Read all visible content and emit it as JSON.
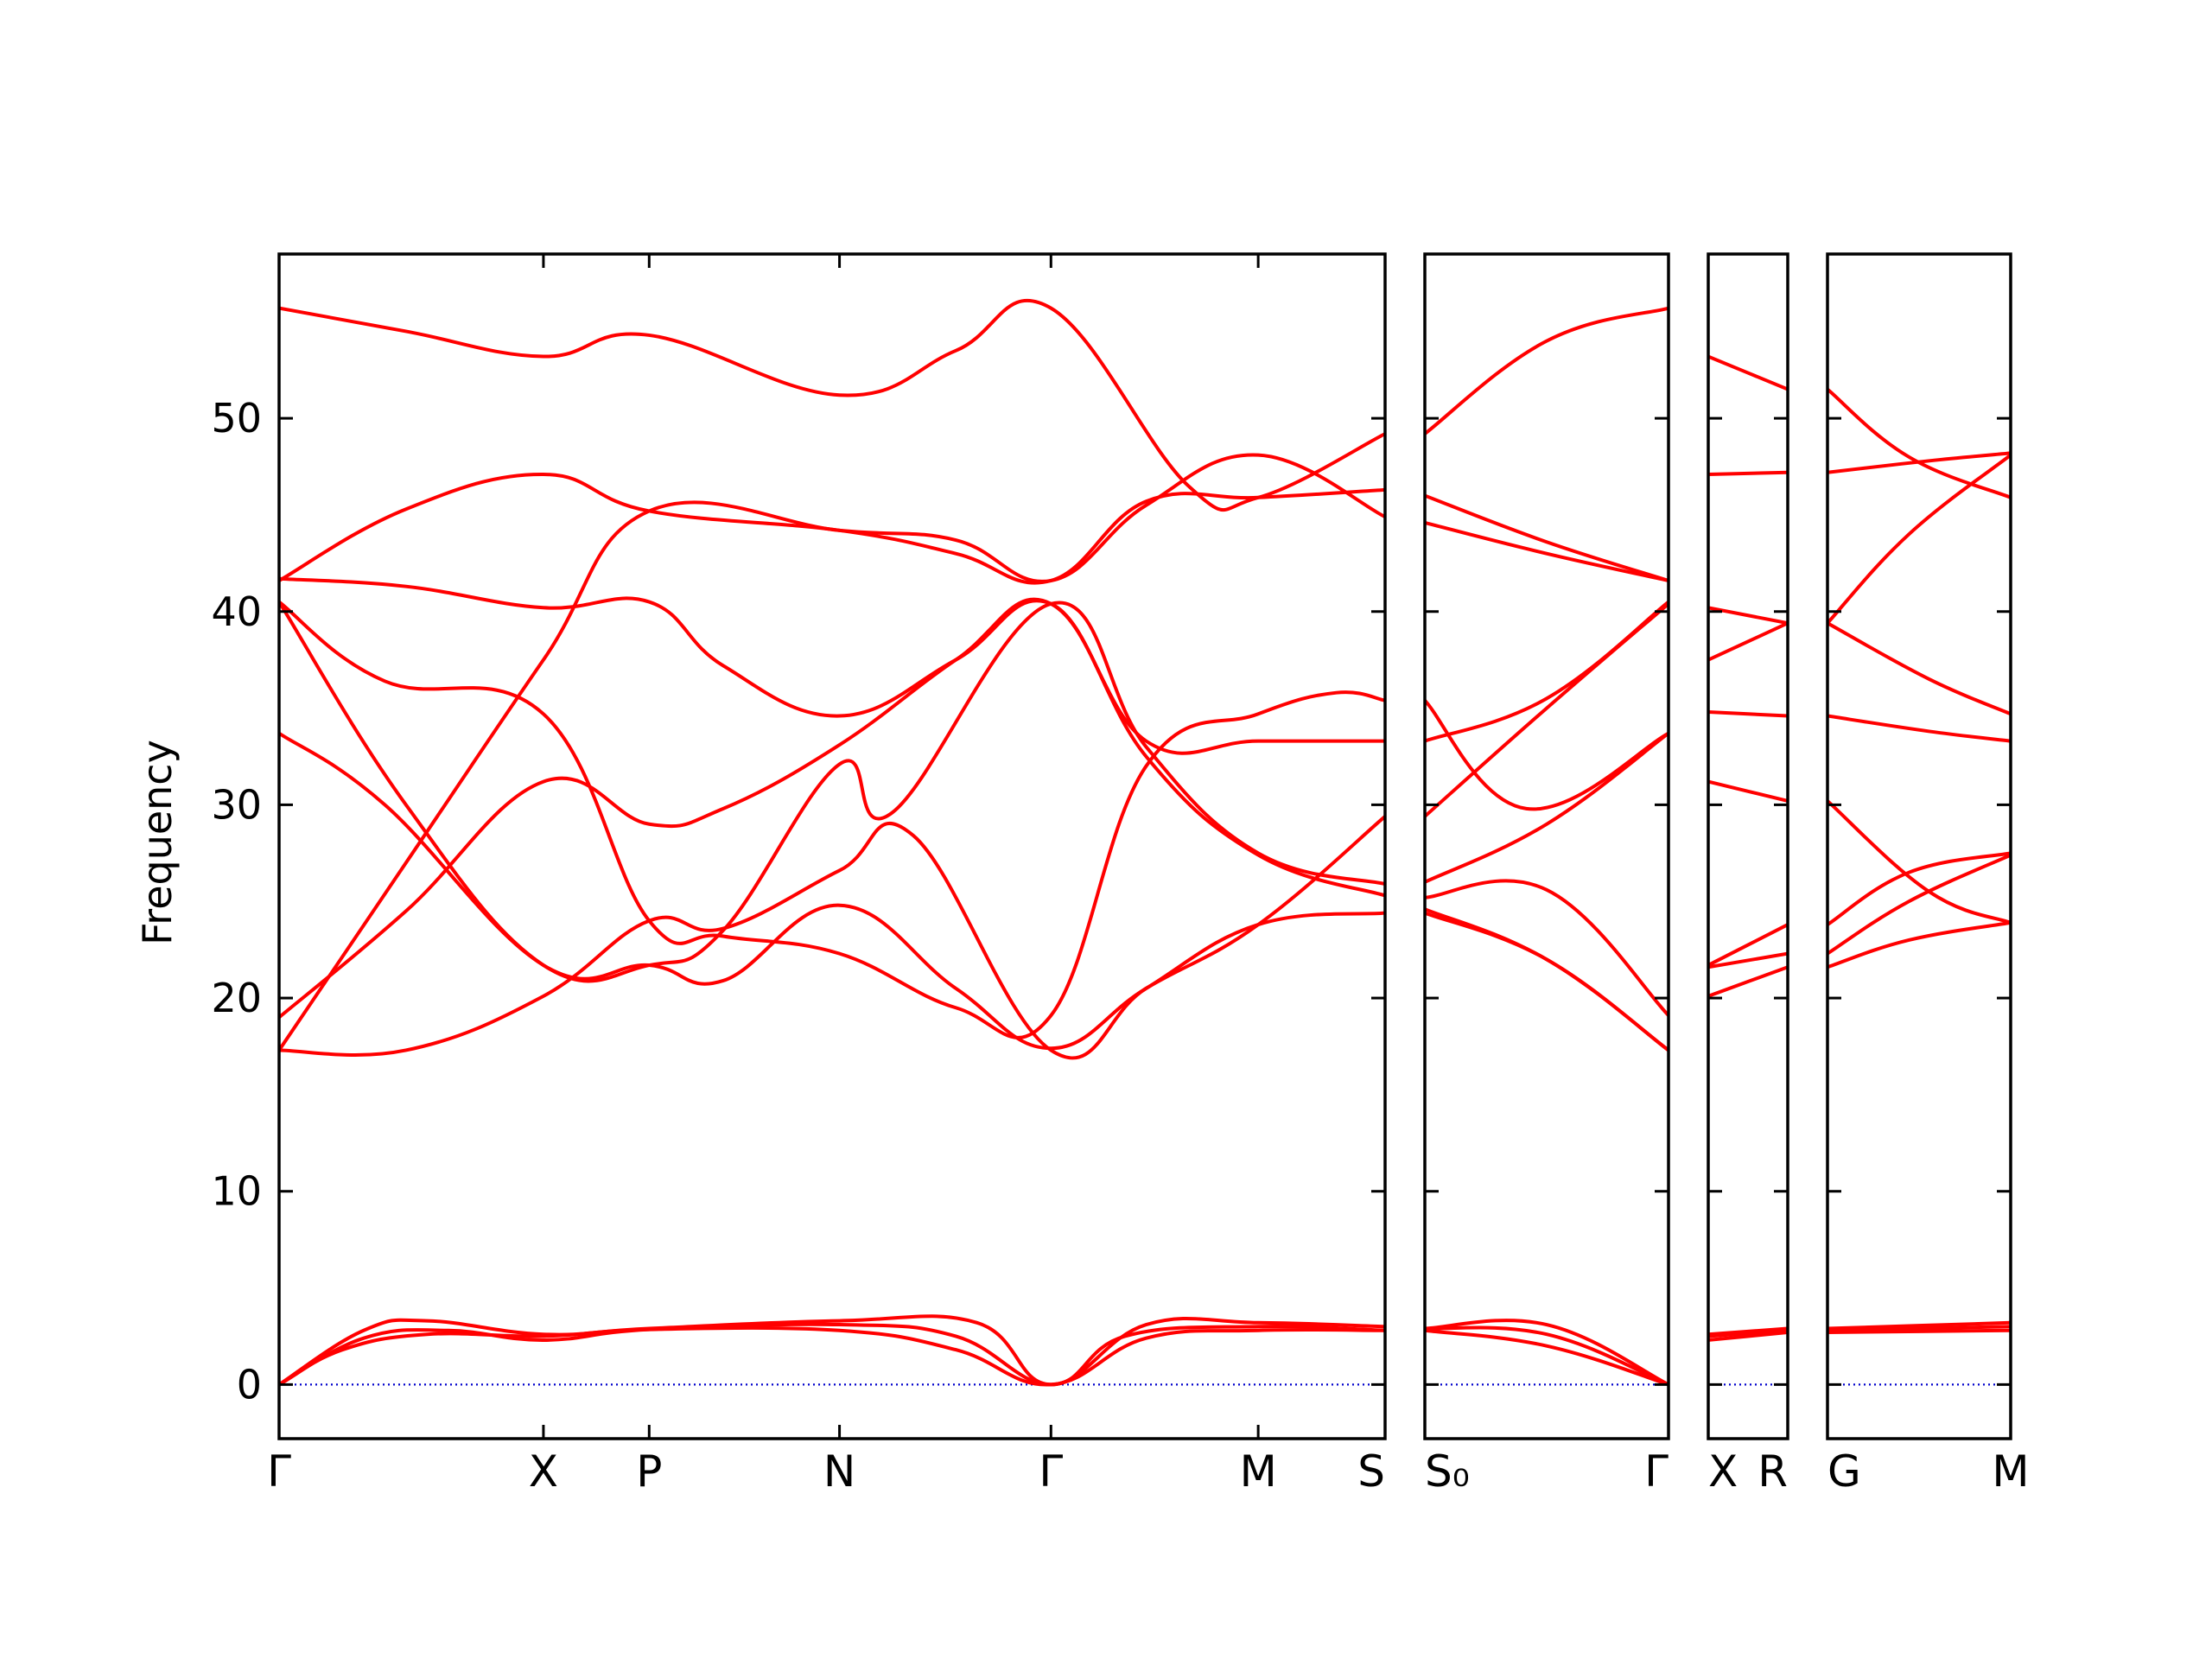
{
  "chart_data": {
    "type": "line",
    "title": "",
    "xlabel": "",
    "ylabel": "Frequency",
    "ylim": [
      -2.8,
      58.5
    ],
    "yticks": [
      0,
      10,
      20,
      30,
      40,
      50
    ],
    "grid": false,
    "band_color": "#ff0000",
    "zero_line_color": "#0000cc",
    "segments": [
      {
        "labels": [
          "Γ",
          "X",
          "P",
          "N",
          "Γ",
          "M",
          "S"
        ],
        "q": [
          0,
          1.25,
          1.75,
          2.65,
          3.65,
          4.63,
          5.23
        ],
        "bands": [
          [
            [
              0,
              0
            ],
            [
              0.3,
              1.8
            ],
            [
              0.7,
              2.6
            ],
            [
              1.25,
              2.5
            ],
            [
              1.75,
              2.85
            ],
            [
              2.65,
              2.8
            ],
            [
              3.2,
              1.8
            ],
            [
              3.65,
              0
            ],
            [
              4.1,
              2.4
            ],
            [
              4.63,
              2.8
            ],
            [
              5.23,
              2.8
            ]
          ],
          [
            [
              0,
              0
            ],
            [
              0.4,
              2.4
            ],
            [
              0.8,
              2.8
            ],
            [
              1.25,
              2.3
            ],
            [
              1.75,
              2.85
            ],
            [
              2.65,
              3.1
            ],
            [
              3.2,
              2.5
            ],
            [
              3.65,
              0
            ],
            [
              4.0,
              2.5
            ],
            [
              4.63,
              3.0
            ],
            [
              5.23,
              2.8
            ]
          ],
          [
            [
              0,
              0
            ],
            [
              0.4,
              2.8
            ],
            [
              0.7,
              3.3
            ],
            [
              1.25,
              2.6
            ],
            [
              1.75,
              2.9
            ],
            [
              2.65,
              3.3
            ],
            [
              3.3,
              3.2
            ],
            [
              3.65,
              0
            ],
            [
              4.1,
              3.1
            ],
            [
              4.63,
              3.2
            ],
            [
              5.23,
              3.0
            ]
          ],
          [
            [
              0,
              17.3
            ],
            [
              0.6,
              17.3
            ],
            [
              1.25,
              20.1
            ],
            [
              1.75,
              24.0
            ],
            [
              2.1,
              23.6
            ],
            [
              2.65,
              26.6
            ],
            [
              3.0,
              28.4
            ],
            [
              3.65,
              17.3
            ],
            [
              4.1,
              20.5
            ],
            [
              4.63,
              23.8
            ],
            [
              5.23,
              24.4
            ]
          ],
          [
            [
              0,
              17.3
            ],
            [
              0.6,
              27.0
            ],
            [
              1.25,
              37.5
            ],
            [
              1.75,
              45.2
            ],
            [
              2.65,
              44.2
            ],
            [
              3.2,
              43.7
            ],
            [
              3.65,
              41.6
            ],
            [
              4.1,
              45.5
            ],
            [
              4.63,
              48.1
            ],
            [
              5.23,
              44.9
            ]
          ],
          [
            [
              0,
              19.0
            ],
            [
              0.6,
              24.5
            ],
            [
              1.25,
              31.2
            ],
            [
              1.75,
              29.0
            ],
            [
              2.1,
              29.8
            ],
            [
              2.65,
              33.1
            ],
            [
              3.2,
              37.5
            ],
            [
              3.65,
              40.4
            ],
            [
              4.1,
              32.5
            ],
            [
              4.63,
              27.4
            ],
            [
              5.23,
              25.3
            ]
          ],
          [
            [
              0,
              33.7
            ],
            [
              0.5,
              30.0
            ],
            [
              1.25,
              21.7
            ],
            [
              1.75,
              21.7
            ],
            [
              2.1,
              20.9
            ],
            [
              2.65,
              24.8
            ],
            [
              3.2,
              20.5
            ],
            [
              3.65,
              17.4
            ],
            [
              4.1,
              20.5
            ],
            [
              4.63,
              23.8
            ],
            [
              5.23,
              29.4
            ]
          ],
          [
            [
              0,
              40.5
            ],
            [
              0.5,
              36.4
            ],
            [
              1.25,
              34.7
            ],
            [
              1.75,
              24.0
            ],
            [
              2.1,
              23.2
            ],
            [
              2.65,
              22.3
            ],
            [
              3.2,
              19.5
            ],
            [
              3.65,
              19.1
            ],
            [
              4.1,
              32.0
            ],
            [
              4.63,
              34.7
            ],
            [
              5.0,
              35.8
            ],
            [
              5.23,
              35.4
            ]
          ],
          [
            [
              0,
              40.5
            ],
            [
              0.6,
              30.0
            ],
            [
              1.25,
              21.7
            ],
            [
              1.75,
              21.7
            ],
            [
              2.1,
              23.5
            ],
            [
              2.65,
              32.1
            ],
            [
              2.9,
              29.6
            ],
            [
              3.65,
              40.4
            ],
            [
              4.1,
              33.0
            ],
            [
              4.63,
              27.5
            ],
            [
              5.23,
              25.9
            ]
          ],
          [
            [
              0,
              41.7
            ],
            [
              0.6,
              41.3
            ],
            [
              1.25,
              40.2
            ],
            [
              1.75,
              40.5
            ],
            [
              2.1,
              37.2
            ],
            [
              2.65,
              34.6
            ],
            [
              3.2,
              37.5
            ],
            [
              3.65,
              40.4
            ],
            [
              4.1,
              33.3
            ],
            [
              4.63,
              33.3
            ],
            [
              5.23,
              33.3
            ]
          ],
          [
            [
              0,
              41.6
            ],
            [
              0.6,
              45.3
            ],
            [
              1.25,
              47.1
            ],
            [
              1.75,
              45.2
            ],
            [
              2.65,
              44.2
            ],
            [
              3.2,
              43.0
            ],
            [
              3.65,
              41.6
            ],
            [
              4.1,
              45.7
            ],
            [
              4.63,
              45.9
            ],
            [
              5.23,
              46.3
            ]
          ],
          [
            [
              0,
              55.7
            ],
            [
              0.6,
              54.5
            ],
            [
              1.25,
              53.2
            ],
            [
              1.75,
              54.3
            ],
            [
              2.65,
              51.2
            ],
            [
              3.2,
              53.5
            ],
            [
              3.65,
              55.7
            ],
            [
              4.3,
              46.5
            ],
            [
              4.63,
              45.9
            ],
            [
              5.23,
              49.2
            ]
          ]
        ]
      },
      {
        "labels": [
          "S₀",
          "Γ"
        ],
        "q": [
          0,
          1.2
        ],
        "bands": [
          [
            [
              0,
              2.8
            ],
            [
              0.6,
              2.0
            ],
            [
              1.2,
              0
            ]
          ],
          [
            [
              0,
              2.9
            ],
            [
              0.6,
              2.6
            ],
            [
              1.2,
              0
            ]
          ],
          [
            [
              0,
              2.9
            ],
            [
              0.6,
              3.1
            ],
            [
              1.2,
              0
            ]
          ],
          [
            [
              0,
              24.4
            ],
            [
              0.6,
              22.0
            ],
            [
              1.2,
              17.3
            ]
          ],
          [
            [
              0,
              24.6
            ],
            [
              0.6,
              22.0
            ],
            [
              1.2,
              17.3
            ]
          ],
          [
            [
              0,
              25.2
            ],
            [
              0.6,
              25.6
            ],
            [
              1.2,
              19.1
            ]
          ],
          [
            [
              0,
              26.0
            ],
            [
              0.6,
              29.0
            ],
            [
              1.2,
              33.7
            ]
          ],
          [
            [
              0,
              29.4
            ],
            [
              0.6,
              35.0
            ],
            [
              1.2,
              40.4
            ]
          ],
          [
            [
              0,
              33.3
            ],
            [
              0.6,
              35.5
            ],
            [
              1.2,
              40.5
            ]
          ],
          [
            [
              0,
              35.4
            ],
            [
              0.5,
              29.8
            ],
            [
              1.2,
              33.7
            ]
          ],
          [
            [
              0,
              44.6
            ],
            [
              0.6,
              43.0
            ],
            [
              1.2,
              41.6
            ]
          ],
          [
            [
              0,
              46.0
            ],
            [
              0.6,
              43.6
            ],
            [
              1.2,
              41.6
            ]
          ],
          [
            [
              0,
              49.2
            ],
            [
              0.6,
              54.0
            ],
            [
              1.2,
              55.7
            ]
          ]
        ]
      },
      {
        "labels": [
          "X",
          "R"
        ],
        "q": [
          0,
          0.4
        ],
        "bands": [
          [
            [
              0,
              2.3
            ],
            [
              0.4,
              2.7
            ]
          ],
          [
            [
              0,
              2.5
            ],
            [
              0.4,
              2.8
            ]
          ],
          [
            [
              0,
              2.6
            ],
            [
              0.4,
              2.9
            ]
          ],
          [
            [
              0,
              20.1
            ],
            [
              0.4,
              21.6
            ]
          ],
          [
            [
              0,
              21.6
            ],
            [
              0.4,
              22.3
            ]
          ],
          [
            [
              0,
              21.7
            ],
            [
              0.4,
              23.8
            ]
          ],
          [
            [
              0,
              31.2
            ],
            [
              0.4,
              30.2
            ]
          ],
          [
            [
              0,
              34.8
            ],
            [
              0.4,
              34.6
            ]
          ],
          [
            [
              0,
              37.5
            ],
            [
              0.4,
              39.4
            ]
          ],
          [
            [
              0,
              40.2
            ],
            [
              0.4,
              39.4
            ]
          ],
          [
            [
              0,
              47.1
            ],
            [
              0.4,
              47.2
            ]
          ],
          [
            [
              0,
              53.2
            ],
            [
              0.4,
              51.5
            ]
          ]
        ]
      },
      {
        "labels": [
          "G",
          "M"
        ],
        "q": [
          0,
          0.9
        ],
        "bands": [
          [
            [
              0,
              2.7
            ],
            [
              0.9,
              2.8
            ]
          ],
          [
            [
              0,
              2.8
            ],
            [
              0.9,
              3.0
            ]
          ],
          [
            [
              0,
              2.9
            ],
            [
              0.9,
              3.2
            ]
          ],
          [
            [
              0,
              21.6
            ],
            [
              0.4,
              23.0
            ],
            [
              0.9,
              23.9
            ]
          ],
          [
            [
              0,
              22.3
            ],
            [
              0.4,
              25.0
            ],
            [
              0.9,
              27.4
            ]
          ],
          [
            [
              0,
              23.8
            ],
            [
              0.4,
              26.5
            ],
            [
              0.9,
              27.5
            ]
          ],
          [
            [
              0,
              30.2
            ],
            [
              0.5,
              25.5
            ],
            [
              0.9,
              23.9
            ]
          ],
          [
            [
              0,
              34.6
            ],
            [
              0.5,
              33.8
            ],
            [
              0.9,
              33.3
            ]
          ],
          [
            [
              0,
              39.4
            ],
            [
              0.5,
              36.5
            ],
            [
              0.9,
              34.7
            ]
          ],
          [
            [
              0,
              39.4
            ],
            [
              0.4,
              44.0
            ],
            [
              0.9,
              48.1
            ]
          ],
          [
            [
              0,
              47.2
            ],
            [
              0.5,
              47.8
            ],
            [
              0.9,
              48.2
            ]
          ],
          [
            [
              0,
              51.5
            ],
            [
              0.4,
              48.0
            ],
            [
              0.9,
              45.9
            ]
          ]
        ]
      }
    ]
  }
}
